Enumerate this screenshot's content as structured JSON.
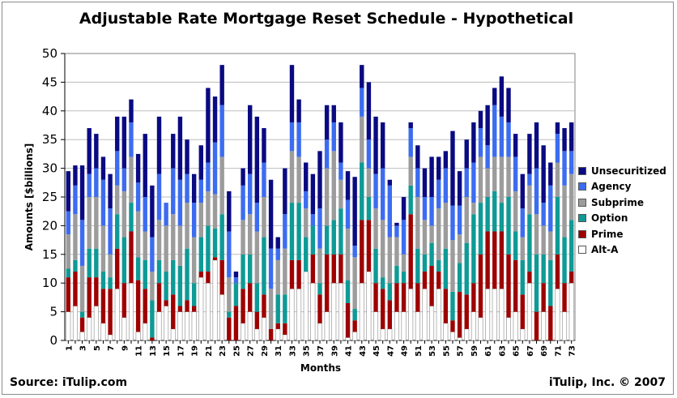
{
  "chart_data": {
    "type": "bar",
    "stacked": true,
    "title": "Adjustable Rate Mortgage Reset Schedule - Hypothetical",
    "xlabel": "Months",
    "ylabel": "Amounts [$billions]",
    "ylim": [
      0,
      50
    ],
    "yticks": [
      0,
      5,
      10,
      15,
      20,
      25,
      30,
      35,
      40,
      45,
      50
    ],
    "grid": true,
    "legend_position": "right",
    "x": [
      1,
      2,
      3,
      4,
      5,
      6,
      7,
      8,
      9,
      10,
      11,
      12,
      13,
      14,
      15,
      16,
      17,
      18,
      19,
      20,
      21,
      22,
      23,
      24,
      25,
      26,
      27,
      28,
      29,
      30,
      31,
      32,
      33,
      34,
      35,
      36,
      37,
      38,
      39,
      40,
      41,
      42,
      43,
      44,
      45,
      46,
      47,
      48,
      49,
      50,
      51,
      52,
      53,
      54,
      55,
      56,
      57,
      58,
      59,
      60,
      61,
      62,
      63,
      64,
      65,
      66,
      67,
      68,
      69,
      70,
      71,
      72,
      73
    ],
    "xtick_labels": [
      "1",
      "3",
      "5",
      "7",
      "9",
      "11",
      "13",
      "15",
      "17",
      "19",
      "21",
      "23",
      "25",
      "27",
      "29",
      "31",
      "33",
      "35",
      "37",
      "39",
      "41",
      "43",
      "45",
      "47",
      "49",
      "51",
      "53",
      "55",
      "57",
      "59",
      "61",
      "63",
      "65",
      "67",
      "69",
      "71",
      "73"
    ],
    "series": [
      {
        "name": "Alt-A",
        "color": "#ffffff",
        "values": [
          5,
          6,
          1.5,
          4,
          6,
          3,
          1,
          9,
          4,
          10,
          1.5,
          3,
          0,
          5,
          6,
          2,
          5,
          5,
          5,
          11,
          10,
          14,
          8,
          0,
          0,
          3,
          5,
          2,
          4,
          0,
          2,
          1,
          9,
          9,
          12,
          10,
          3,
          5,
          10,
          10,
          0.5,
          1.5,
          10,
          12,
          5,
          2,
          2,
          5,
          5,
          9,
          5,
          9,
          6,
          9,
          3,
          1.5,
          0.5,
          2,
          5,
          4,
          9,
          9,
          9,
          4,
          5,
          2,
          10,
          0,
          5,
          0,
          9,
          5,
          10
        ]
      },
      {
        "name": "Prime",
        "color": "#9e0000",
        "values": [
          6,
          6,
          2.5,
          7,
          5,
          6,
          8,
          7,
          6,
          9,
          9,
          6,
          0.5,
          5,
          1,
          6,
          1,
          2,
          1,
          1,
          2,
          0.5,
          6,
          4,
          6,
          6,
          5,
          3,
          4,
          2,
          1,
          2,
          5,
          5,
          0,
          5,
          5,
          10,
          5,
          5,
          6,
          2,
          11,
          9,
          5,
          7,
          5,
          5,
          5,
          13,
          5,
          3,
          7,
          3,
          6,
          2,
          8,
          6,
          5,
          11,
          10,
          10,
          10,
          11,
          9,
          6,
          2,
          5,
          5,
          6,
          6,
          5,
          2
        ]
      },
      {
        "name": "Option",
        "color": "#0e9a96",
        "values": [
          1.5,
          2,
          1,
          5,
          5,
          3,
          2,
          6,
          8,
          5,
          4,
          5,
          6.5,
          4,
          5,
          6,
          7,
          9,
          4,
          6,
          8,
          5,
          8,
          1,
          4,
          6,
          5,
          5,
          10,
          0,
          5,
          5,
          10,
          10,
          6,
          5,
          2,
          5,
          6,
          8,
          4,
          2,
          10,
          4,
          6,
          2,
          3,
          3,
          2,
          5,
          6,
          3,
          4,
          2,
          7,
          5,
          5,
          9,
          12,
          9,
          6,
          7,
          5,
          10,
          5,
          6,
          10,
          10,
          5,
          8,
          10,
          8,
          9
        ]
      },
      {
        "name": "Subprime",
        "color": "#9c9c9c",
        "values": [
          6,
          8,
          8,
          9,
          9,
          8,
          4,
          5,
          8,
          8,
          8,
          5,
          5,
          7,
          8,
          8,
          7,
          8,
          8,
          6,
          6,
          6,
          10,
          6,
          0,
          6,
          7,
          9,
          7,
          7,
          6,
          8,
          9,
          8,
          5,
          0,
          6,
          10,
          12,
          5,
          9,
          9,
          8,
          5,
          7,
          10,
          8,
          5,
          3,
          5,
          9,
          6,
          3,
          9,
          8,
          9,
          5,
          8,
          2,
          8,
          5,
          6,
          8,
          7,
          7,
          4,
          5,
          7,
          5,
          5,
          6,
          9,
          8
        ]
      },
      {
        "name": "Agency",
        "color": "#3c6cf0",
        "values": [
          4,
          5,
          8,
          4,
          5,
          8,
          8,
          6,
          4,
          6,
          5,
          6,
          6,
          8,
          4,
          8,
          8,
          5,
          6,
          4,
          5,
          9,
          9,
          8,
          1,
          6,
          7,
          5,
          6,
          7,
          2,
          6,
          5,
          6,
          3,
          2,
          7,
          5,
          5,
          3,
          5,
          2,
          5,
          5,
          6,
          9,
          9,
          2,
          6,
          5,
          5,
          4,
          5,
          5,
          6,
          6,
          5,
          5,
          7,
          5,
          4,
          9,
          7,
          6,
          6,
          5,
          2,
          8,
          4,
          8,
          5,
          6,
          4
        ]
      },
      {
        "name": "Unsecuritized",
        "color": "#0a0a82",
        "values": [
          7,
          3.5,
          9.5,
          8,
          6,
          4,
          6,
          6,
          9,
          4,
          5,
          11,
          9,
          10,
          0,
          6,
          11,
          6,
          5,
          6,
          13,
          8,
          7,
          7,
          1,
          3,
          12,
          15,
          6,
          12,
          2,
          8,
          10,
          4,
          5,
          7,
          10,
          6,
          3,
          7,
          5,
          12,
          4,
          10,
          10,
          8,
          1,
          0.5,
          4,
          1,
          4,
          5,
          7,
          4,
          3,
          13,
          6,
          5,
          7,
          3,
          7,
          3,
          7,
          6,
          4,
          6,
          7,
          8,
          10,
          4,
          2,
          4,
          5
        ]
      }
    ]
  }
}
